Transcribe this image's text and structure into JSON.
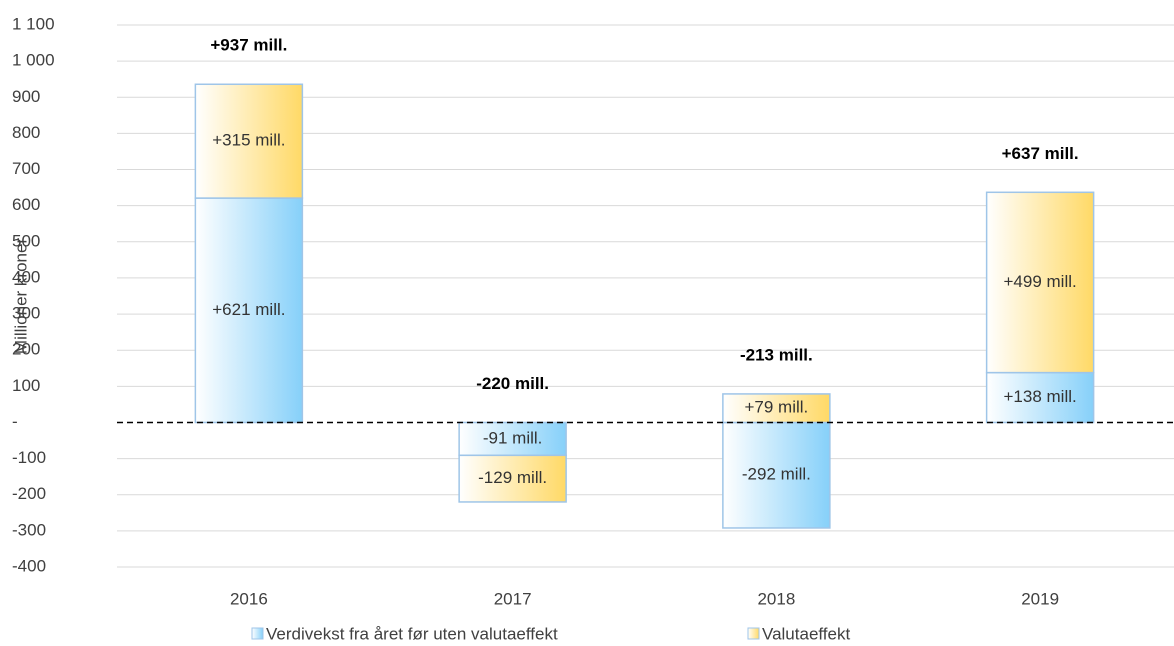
{
  "chart_data": {
    "type": "stacked_bar",
    "y_label": "Millioner kroner",
    "categories": [
      "2016",
      "2017",
      "2018",
      "2019"
    ],
    "series": [
      {
        "name": "Verdivekst fra året før uten valutaeffekt",
        "color": "#86d0f9",
        "values": [
          621,
          -91,
          -292,
          138
        ],
        "value_labels": [
          "+621 mill.",
          "-91 mill.",
          "-292 mill.",
          "+138 mill."
        ]
      },
      {
        "name": "Valutaeffekt",
        "color": "#ffd966",
        "values": [
          315,
          -129,
          79,
          499
        ],
        "value_labels": [
          "+315 mill.",
          "-129 mill.",
          "+79 mill.",
          "+499 mill."
        ]
      }
    ],
    "totals": {
      "values": [
        937,
        -220,
        -213,
        637
      ],
      "value_labels": [
        "+937 mill.",
        "-220 mill.",
        "-213 mill.",
        "+637 mill."
      ]
    },
    "ylim": [
      -400,
      1100
    ],
    "yticks": [
      {
        "value": 1100,
        "label": "1 100"
      },
      {
        "value": 1000,
        "label": "1 000"
      },
      900,
      800,
      700,
      600,
      500,
      400,
      300,
      200,
      100,
      {
        "value": 0,
        "label": "-"
      },
      -100,
      -200,
      -300,
      -400
    ],
    "grid": true
  }
}
